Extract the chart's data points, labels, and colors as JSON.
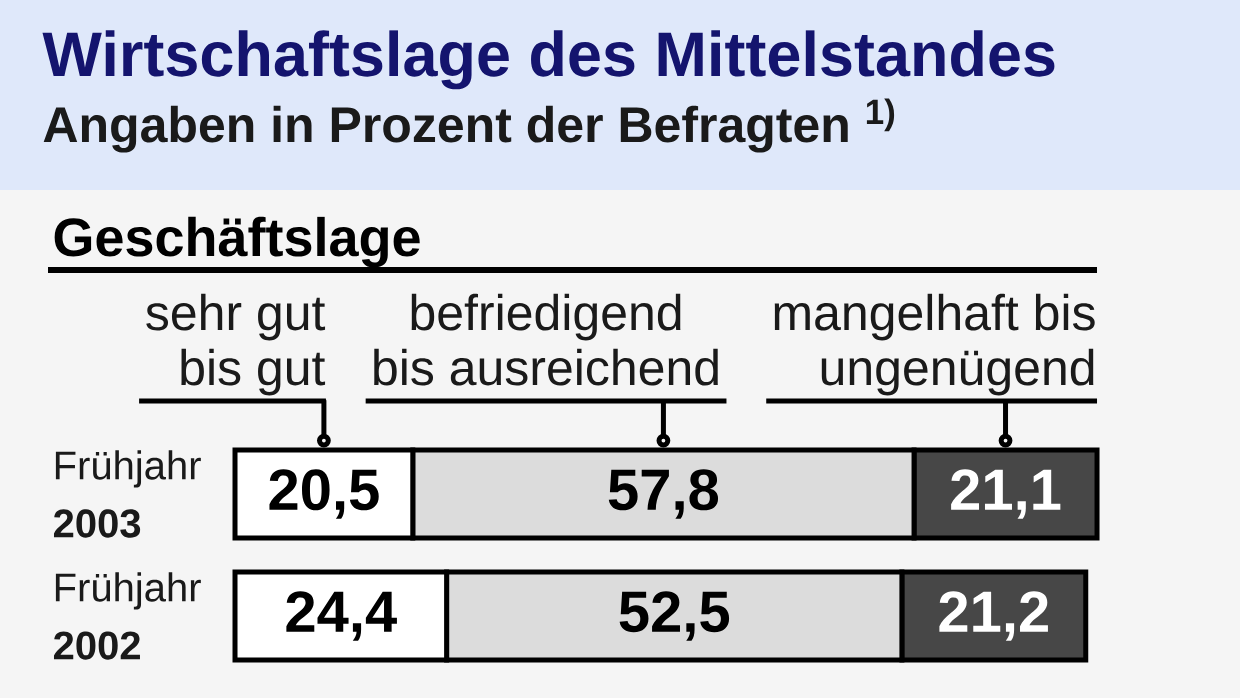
{
  "chart_data": {
    "type": "bar",
    "orientation": "horizontal",
    "stacked": true,
    "title": "Wirtschaftslage des Mittelstandes",
    "subtitle": "Angaben in Prozent der Befragten $^{1)}$",
    "annotations": [
      "Geschäftslage"
    ],
    "categories": [
      "Frühjahr **2003**",
      "Frühjahr **2002**"
    ],
    "series": [
      {
        "name": "sehr gut bis gut",
        "color": "#ffffff",
        "values": [
          20.5,
          24.4
        ],
        "value_labels": [
          "20,5",
          "24,4"
        ]
      },
      {
        "name": "befriedigend bis ausreichend",
        "color": "#dcdcdc",
        "values": [
          57.8,
          52.5
        ],
        "value_labels": [
          "57,8",
          "52,5"
        ]
      },
      {
        "name": "mangelhaft bis ungenügend",
        "color": "#474747",
        "values": [
          21.1,
          21.2
        ],
        "value_labels": [
          "21,1",
          "21,2"
        ]
      }
    ],
    "tick_labels": "y"
  }
}
